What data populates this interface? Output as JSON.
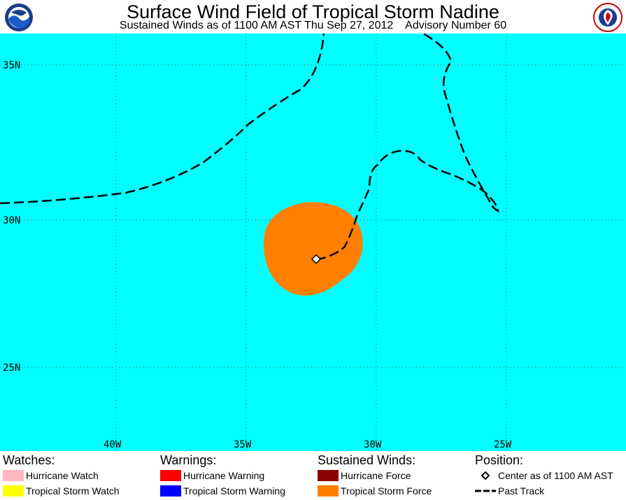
{
  "title": "Surface Wind Field of Tropical Storm Nadine",
  "subtitle": "Sustained Winds as of 1100 AM AST Thu Sep 27, 2012    Advisory Number 60",
  "map": {
    "ocean_color": "#00ffff",
    "lat_labels": [
      "35N",
      "30N",
      "25N"
    ],
    "lon_labels": [
      "40W",
      "35W",
      "30W",
      "25W"
    ],
    "storm_center": {
      "lon": -32.4,
      "lat": 28.6
    },
    "tropical_storm_force_color": "#ff8000"
  },
  "legend": {
    "watches": {
      "heading": "Watches:",
      "items": [
        {
          "label": "Hurricane Watch",
          "color": "#ffb6c1"
        },
        {
          "label": "Tropical Storm Watch",
          "color": "#ffff00"
        }
      ]
    },
    "warnings": {
      "heading": "Warnings:",
      "items": [
        {
          "label": "Hurricane Warning",
          "color": "#ff0000"
        },
        {
          "label": "Tropical Storm Warning",
          "color": "#0000ff"
        }
      ]
    },
    "winds": {
      "heading": "Sustained Winds:",
      "items": [
        {
          "label": "Hurricane Force",
          "color": "#8b0000"
        },
        {
          "label": "Tropical Storm Force",
          "color": "#ff8000"
        }
      ]
    },
    "position": {
      "heading": "Position:",
      "items": [
        {
          "label": "Center as of 1100 AM AST",
          "icon": "diamond-icon"
        },
        {
          "label": "Past Track",
          "icon": "dashed-line-icon"
        }
      ]
    }
  }
}
